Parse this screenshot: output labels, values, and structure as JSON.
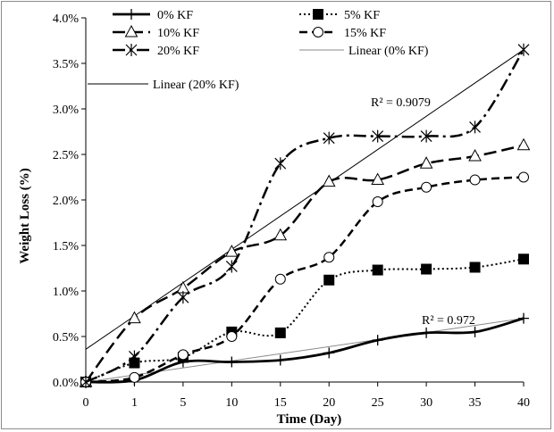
{
  "chart_data": {
    "type": "line",
    "xlabel": "Time (Day)",
    "ylabel": "Weight Loss (%)",
    "categories": [
      "0",
      "1",
      "5",
      "10",
      "15",
      "20",
      "25",
      "30",
      "35",
      "40"
    ],
    "y_ticks": [
      "0.0%",
      "0.5%",
      "1.0%",
      "1.5%",
      "2.0%",
      "2.5%",
      "3.0%",
      "3.5%",
      "4.0%"
    ],
    "ylim": [
      0,
      4.0
    ],
    "grid": false,
    "legend_position": "top-left (inside plot)",
    "series": [
      {
        "name": "0% KF",
        "marker": "plus",
        "line": "solid-thick",
        "values": [
          0,
          0.02,
          0.22,
          0.22,
          0.24,
          0.32,
          0.46,
          0.54,
          0.55,
          0.7
        ]
      },
      {
        "name": "5% KF",
        "marker": "square",
        "line": "dotted",
        "values": [
          0,
          0.21,
          0.27,
          0.55,
          0.54,
          1.12,
          1.23,
          1.24,
          1.26,
          1.35
        ]
      },
      {
        "name": "10% KF",
        "marker": "triangle",
        "line": "long-dash",
        "values": [
          0,
          0.7,
          1.03,
          1.43,
          1.61,
          2.2,
          2.22,
          2.4,
          2.48,
          2.6
        ]
      },
      {
        "name": "15% KF",
        "marker": "circle",
        "line": "dash",
        "values": [
          0,
          0.05,
          0.3,
          0.5,
          1.13,
          1.37,
          1.98,
          2.14,
          2.22,
          2.25
        ]
      },
      {
        "name": "20% KF",
        "marker": "star",
        "line": "dash-dot",
        "values": [
          0,
          0.28,
          0.93,
          1.27,
          2.4,
          2.68,
          2.7,
          2.7,
          2.8,
          3.65
        ]
      }
    ],
    "trendlines": [
      {
        "name": "Linear (0% KF)",
        "style": "thin-gray",
        "start": 0.0,
        "end": 0.7
      },
      {
        "name": "Linear (20% KF)",
        "style": "thin-black",
        "start": 0.36,
        "end": 3.65
      }
    ],
    "annotations": [
      {
        "text": "R² = 0.9079",
        "x_category": "20",
        "y": 3.2
      },
      {
        "text": "R² = 0.972",
        "x_category": "25",
        "y": 0.68
      }
    ]
  }
}
